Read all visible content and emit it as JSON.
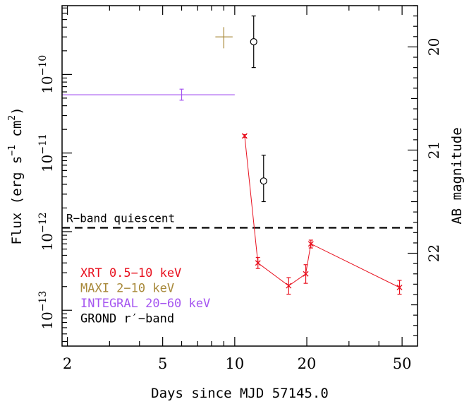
{
  "chart_data": {
    "type": "scatter",
    "xlabel": "Days since MJD 57145.0",
    "ylabel_left": "Flux (erg s",
    "ylabel_left_sup1": "−1",
    "ylabel_left_mid": " cm",
    "ylabel_left_sup2": "2",
    "ylabel_left_end": ")",
    "ylabel_right": "AB magnitude",
    "x_scale": "log",
    "xlim": [
      1.9,
      58
    ],
    "ylim_flux": [
      3.5e-14,
      7.5e-10
    ],
    "ylim_mag": [
      22.9,
      19.6
    ],
    "x_ticks": [
      {
        "value": 2,
        "label": "2"
      },
      {
        "value": 5,
        "label": "5"
      },
      {
        "value": 10,
        "label": "10"
      },
      {
        "value": 20,
        "label": "20"
      },
      {
        "value": 50,
        "label": "50"
      }
    ],
    "y_ticks_left": [
      {
        "value": 1e-10,
        "base": "10",
        "exp": "−10"
      },
      {
        "value": 1e-11,
        "base": "10",
        "exp": "−11"
      },
      {
        "value": 1e-12,
        "base": "10",
        "exp": "−12"
      },
      {
        "value": 1e-13,
        "base": "10",
        "exp": "−13"
      }
    ],
    "y_ticks_right": [
      {
        "value": 20,
        "label": "20"
      },
      {
        "value": 21,
        "label": "21"
      },
      {
        "value": 22,
        "label": "22"
      }
    ],
    "reference_line": {
      "label": "R−band quiescent",
      "flux": 1.12e-12,
      "color": "#000000"
    },
    "series": [
      {
        "name": "XRT 0.5−10 keV",
        "color": "#e8101e",
        "marker": "x",
        "connected": true,
        "points": [
          {
            "x": 11.0,
            "y": 1.65e-11,
            "ylo": 1.58e-11,
            "yhi": 1.72e-11
          },
          {
            "x": 12.5,
            "y": 4e-13,
            "ylo": 3.4e-13,
            "yhi": 4.7e-13
          },
          {
            "x": 16.8,
            "y": 2.05e-13,
            "ylo": 1.6e-13,
            "yhi": 2.6e-13
          },
          {
            "x": 19.8,
            "y": 2.9e-13,
            "ylo": 2.2e-13,
            "yhi": 3.8e-13
          },
          {
            "x": 20.8,
            "y": 7e-13,
            "ylo": 6.2e-13,
            "yhi": 7.8e-13
          },
          {
            "x": 48.8,
            "y": 1.95e-13,
            "ylo": 1.6e-13,
            "yhi": 2.4e-13
          }
        ]
      },
      {
        "name": "MAXI 2−10 keV",
        "color": "#a8893a",
        "marker": "cross",
        "connected": false,
        "points": [
          {
            "x": 9.0,
            "y": 3e-10,
            "ylo": 2.15e-10,
            "yhi": 4e-10,
            "xlo": 8.3,
            "xhi": 9.8
          }
        ]
      },
      {
        "name": "INTEGRAL 20−60 keV",
        "color": "#a555f0",
        "marker": "bar",
        "connected": false,
        "points": [
          {
            "x": 6.0,
            "y": 5.5e-11,
            "ylo": 4.7e-11,
            "yhi": 6.5e-11,
            "xlo": 1.9,
            "xhi": 10.0
          }
        ]
      },
      {
        "name": "GROND r′−band",
        "color": "#000000",
        "marker": "circle",
        "connected": false,
        "axis": "mag",
        "points": [
          {
            "x": 12.0,
            "mag": 19.95,
            "maglo": 20.2,
            "maghi": 19.7
          },
          {
            "x": 13.2,
            "mag": 21.3,
            "maglo": 21.5,
            "maghi": 21.05
          }
        ]
      }
    ],
    "legend": {
      "position": "bottom-left"
    }
  }
}
